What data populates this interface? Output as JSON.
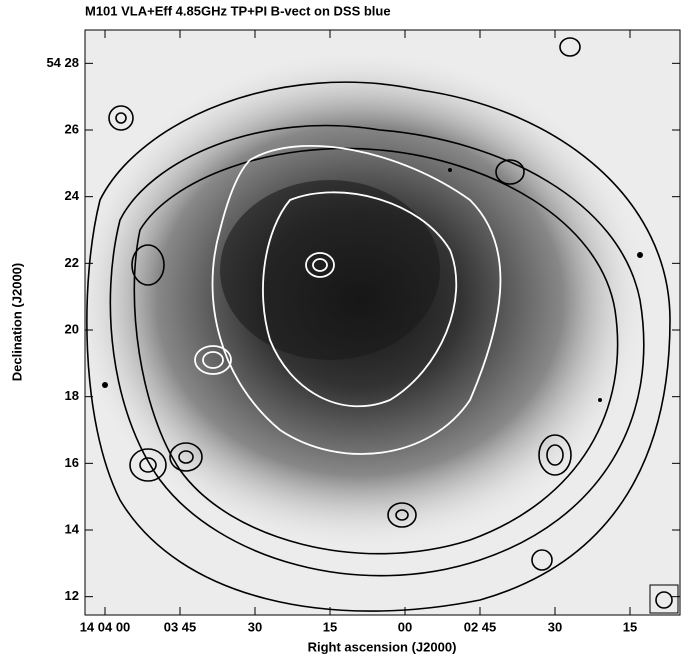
{
  "chart_data": {
    "type": "contour",
    "title": "M101 VLA+Eff 4.85GHz TP+PI B-vect on DSS blue",
    "xlabel": "Right ascension (J2000)",
    "ylabel": "Declination (J2000)",
    "xlim": [
      244,
      125
    ],
    "ylim": [
      11.45,
      29
    ],
    "xticks": [
      {
        "value": 240,
        "label": "14 04 00"
      },
      {
        "value": 225,
        "label": "03 45"
      },
      {
        "value": 210,
        "label": "30"
      },
      {
        "value": 195,
        "label": "15"
      },
      {
        "value": 180,
        "label": "00"
      },
      {
        "value": 165,
        "label": "02 45"
      },
      {
        "value": 150,
        "label": "30"
      },
      {
        "value": 135,
        "label": "15"
      }
    ],
    "yticks": [
      12,
      14,
      16,
      18,
      20,
      22,
      24,
      26,
      {
        "value": 28,
        "label": "54 28"
      }
    ]
  }
}
